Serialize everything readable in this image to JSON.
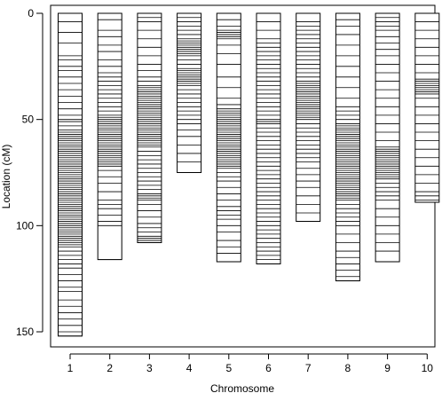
{
  "chart_data": {
    "type": "genetic-map",
    "xlabel": "Chromosome",
    "ylabel": "Location (cM)",
    "categories": [
      "1",
      "2",
      "3",
      "4",
      "5",
      "6",
      "7",
      "8",
      "9",
      "10"
    ],
    "ylim": [
      0,
      155
    ],
    "y_reversed": true,
    "yticks": [
      0,
      50,
      100,
      150
    ],
    "chromosome_length_cM": [
      152,
      116,
      108,
      75,
      117,
      118,
      98,
      126,
      117,
      89
    ],
    "markers": [
      [
        0,
        4,
        9,
        14,
        20,
        22,
        25,
        27,
        30,
        33,
        36,
        39,
        42,
        45,
        48,
        50,
        51,
        53,
        55,
        56,
        57,
        58,
        59,
        60,
        61,
        62,
        63,
        64,
        65,
        66,
        67,
        68,
        69,
        70,
        71,
        72,
        73,
        74,
        75,
        76,
        77,
        78,
        79,
        80,
        81,
        82,
        83,
        84,
        85,
        86,
        87,
        88,
        89,
        90,
        91,
        92,
        93,
        94,
        95,
        96,
        97,
        98,
        99,
        100,
        101,
        102,
        103,
        104,
        105,
        106,
        107,
        108,
        109,
        110,
        112,
        114,
        116,
        118,
        120,
        123,
        126,
        129,
        131,
        135,
        138,
        141,
        144,
        147,
        150,
        152
      ],
      [
        0,
        3,
        8,
        11,
        15,
        18,
        22,
        25,
        28,
        30,
        32,
        34,
        36,
        38,
        40,
        42,
        44,
        46,
        48,
        49,
        50,
        51,
        52,
        53,
        54,
        55,
        56,
        57,
        58,
        59,
        60,
        61,
        62,
        63,
        64,
        65,
        66,
        67,
        68,
        69,
        70,
        71,
        72,
        74,
        77,
        80,
        84,
        88,
        90,
        92,
        95,
        98,
        100,
        116
      ],
      [
        0,
        2,
        4,
        8,
        12,
        16,
        20,
        24,
        27,
        30,
        32,
        34,
        35,
        36,
        37,
        38,
        39,
        40,
        41,
        42,
        43,
        44,
        45,
        46,
        47,
        48,
        49,
        50,
        51,
        52,
        53,
        54,
        55,
        56,
        57,
        58,
        59,
        60,
        61,
        62,
        63,
        65,
        67,
        69,
        71,
        73,
        75,
        77,
        79,
        81,
        83,
        85,
        86,
        87,
        88,
        90,
        93,
        96,
        99,
        101,
        103,
        105,
        106,
        107,
        108
      ],
      [
        0,
        2,
        4,
        6,
        8,
        10,
        12,
        13,
        14,
        15,
        16,
        17,
        18,
        19,
        20,
        22,
        24,
        26,
        27,
        28,
        29,
        30,
        31,
        32,
        33,
        34,
        36,
        38,
        40,
        42,
        44,
        46,
        48,
        50,
        52,
        55,
        58,
        62,
        66,
        70,
        75
      ],
      [
        0,
        3,
        6,
        8,
        9,
        10,
        11,
        12,
        15,
        19,
        24,
        30,
        35,
        40,
        43,
        45,
        46,
        47,
        48,
        49,
        50,
        51,
        52,
        53,
        54,
        55,
        56,
        57,
        58,
        59,
        60,
        61,
        62,
        63,
        64,
        65,
        66,
        67,
        68,
        69,
        70,
        71,
        72,
        73,
        75,
        77,
        79,
        82,
        85,
        88,
        91,
        93,
        95,
        97,
        100,
        103,
        107,
        110,
        113,
        117
      ],
      [
        0,
        4,
        8,
        12,
        14,
        16,
        18,
        20,
        22,
        24,
        26,
        28,
        30,
        32,
        34,
        36,
        38,
        40,
        42,
        44,
        46,
        48,
        50,
        51,
        52,
        54,
        56,
        58,
        60,
        62,
        64,
        66,
        68,
        70,
        72,
        74,
        76,
        78,
        80,
        82,
        84,
        86,
        88,
        90,
        92,
        94,
        96,
        98,
        100,
        102,
        104,
        106,
        108,
        110,
        112,
        114,
        116,
        118
      ],
      [
        0,
        4,
        6,
        8,
        10,
        12,
        14,
        16,
        18,
        20,
        22,
        24,
        26,
        28,
        30,
        32,
        33,
        34,
        35,
        36,
        37,
        38,
        39,
        40,
        41,
        42,
        43,
        44,
        45,
        46,
        47,
        48,
        49,
        50,
        52,
        54,
        56,
        58,
        60,
        62,
        64,
        66,
        68,
        70,
        73,
        76,
        79,
        82,
        86,
        90,
        94,
        98
      ],
      [
        0,
        3,
        6,
        10,
        15,
        20,
        25,
        30,
        35,
        40,
        44,
        46,
        48,
        50,
        52,
        53,
        54,
        55,
        56,
        57,
        58,
        59,
        60,
        61,
        62,
        63,
        64,
        65,
        66,
        67,
        68,
        69,
        70,
        71,
        72,
        73,
        74,
        75,
        76,
        77,
        78,
        79,
        80,
        81,
        82,
        83,
        84,
        85,
        86,
        87,
        88,
        90,
        92,
        94,
        96,
        98,
        100,
        104,
        108,
        112,
        115,
        118,
        121,
        124,
        126
      ],
      [
        0,
        2,
        4,
        6,
        8,
        11,
        14,
        17,
        20,
        24,
        28,
        32,
        36,
        40,
        44,
        48,
        52,
        56,
        60,
        63,
        64,
        65,
        66,
        67,
        68,
        69,
        70,
        71,
        72,
        73,
        74,
        75,
        76,
        77,
        78,
        80,
        82,
        84,
        86,
        88,
        92,
        96,
        100,
        104,
        108,
        112,
        117
      ],
      [
        0,
        4,
        8,
        12,
        16,
        20,
        24,
        28,
        31,
        32,
        33,
        34,
        35,
        36,
        37,
        38,
        40,
        44,
        48,
        52,
        56,
        60,
        64,
        68,
        72,
        76,
        80,
        84,
        86,
        88,
        89
      ]
    ]
  }
}
